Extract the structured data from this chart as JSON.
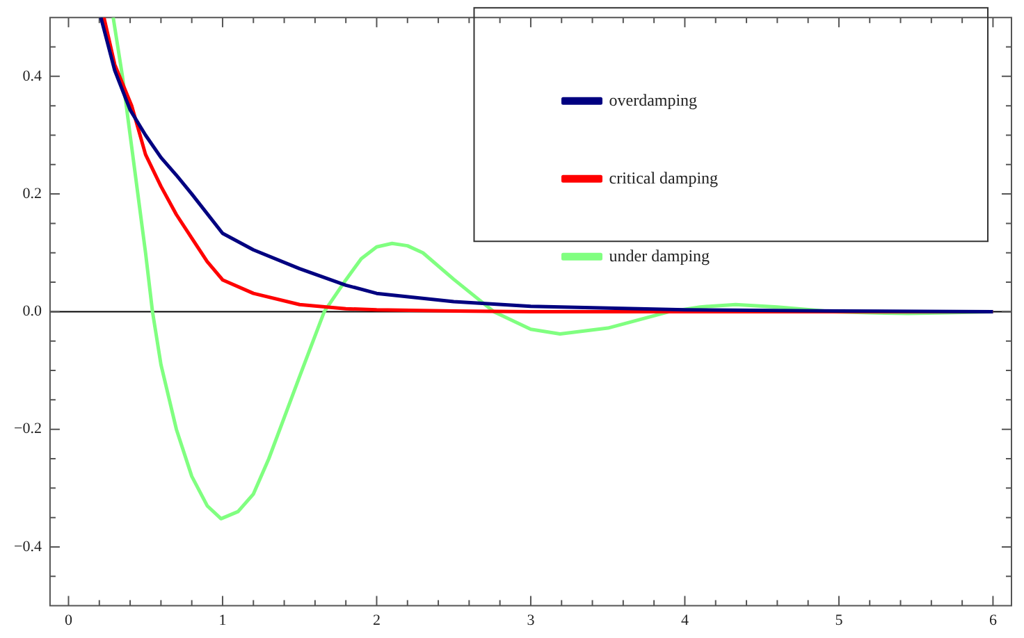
{
  "chart_data": {
    "type": "line",
    "xlim": [
      -0.12,
      6.12
    ],
    "ylim": [
      -0.5,
      0.5
    ],
    "xticks": [
      0,
      {
        "value": 0.2,
        "label": null
      },
      {
        "value": 0.4,
        "label": null
      },
      {
        "value": 0.6,
        "label": null
      },
      {
        "value": 0.8,
        "label": null
      },
      1,
      {
        "value": 1.2,
        "label": null
      },
      {
        "value": 1.4,
        "label": null
      },
      {
        "value": 1.6,
        "label": null
      },
      {
        "value": 1.8,
        "label": null
      },
      2,
      {
        "value": 2.2,
        "label": null
      },
      {
        "value": 2.4,
        "label": null
      },
      {
        "value": 2.6,
        "label": null
      },
      {
        "value": 2.8,
        "label": null
      },
      3,
      {
        "value": 3.2,
        "label": null
      },
      {
        "value": 3.4,
        "label": null
      },
      {
        "value": 3.6,
        "label": null
      },
      {
        "value": 3.8,
        "label": null
      },
      4,
      {
        "value": 4.2,
        "label": null
      },
      {
        "value": 4.4,
        "label": null
      },
      {
        "value": 4.6,
        "label": null
      },
      {
        "value": 4.8,
        "label": null
      },
      5,
      {
        "value": 5.2,
        "label": null
      },
      {
        "value": 5.4,
        "label": null
      },
      {
        "value": 5.6,
        "label": null
      },
      {
        "value": 5.8,
        "label": null
      },
      6
    ],
    "yticks": [
      {
        "value": -0.45,
        "label": null
      },
      {
        "value": -0.4,
        "label": "−0.4"
      },
      {
        "value": -0.35,
        "label": null
      },
      {
        "value": -0.3,
        "label": null
      },
      {
        "value": -0.25,
        "label": null
      },
      {
        "value": -0.2,
        "label": "−0.2"
      },
      {
        "value": -0.15,
        "label": null
      },
      {
        "value": -0.1,
        "label": null
      },
      {
        "value": -0.05,
        "label": null
      },
      {
        "value": 0,
        "label": "0.0"
      },
      {
        "value": 0.05,
        "label": null
      },
      {
        "value": 0.1,
        "label": null
      },
      {
        "value": 0.15,
        "label": null
      },
      {
        "value": 0.2,
        "label": "0.2"
      },
      {
        "value": 0.25,
        "label": null
      },
      {
        "value": 0.3,
        "label": null
      },
      {
        "value": 0.35,
        "label": null
      },
      {
        "value": 0.4,
        "label": "0.4"
      },
      {
        "value": 0.45,
        "label": null
      }
    ],
    "grid": false,
    "legend": "top right",
    "marker": "none",
    "line_style": "solid",
    "ref_lines": [
      {
        "axis": "y",
        "value": 0,
        "color": "#000000"
      }
    ],
    "series": [
      {
        "name": "overdamping",
        "color": "#000080",
        "x": [
          0.21,
          0.3,
          0.4,
          0.5,
          0.6,
          0.7,
          0.8,
          1.0,
          1.2,
          1.5,
          1.8,
          2.0,
          2.5,
          3.0,
          3.5,
          4.0,
          5.0,
          6.0
        ],
        "values": [
          0.5,
          0.41,
          0.343,
          0.3,
          0.262,
          0.232,
          0.2,
          0.133,
          0.105,
          0.073,
          0.045,
          0.031,
          0.017,
          0.009,
          0.006,
          0.003,
          0.001,
          0
        ]
      },
      {
        "name": "critical damping",
        "color": "#ff0000",
        "x": [
          0.23,
          0.3,
          0.41,
          0.5,
          0.6,
          0.7,
          0.8,
          0.9,
          1.0,
          1.2,
          1.5,
          1.8,
          2.0,
          2.5,
          3.0,
          4.0,
          5.0,
          6.0
        ],
        "values": [
          0.5,
          0.42,
          0.35,
          0.267,
          0.213,
          0.165,
          0.125,
          0.085,
          0.054,
          0.031,
          0.012,
          0.005,
          0.003,
          0.001,
          0,
          0,
          0,
          0
        ]
      },
      {
        "name": "under damping",
        "color": "#80ff80",
        "x": [
          0.29,
          0.35,
          0.4,
          0.45,
          0.5,
          0.545,
          0.6,
          0.7,
          0.8,
          0.9,
          0.99,
          1.1,
          1.2,
          1.3,
          1.4,
          1.5,
          1.66,
          1.8,
          1.9,
          2.0,
          2.1,
          2.2,
          2.3,
          2.5,
          2.76,
          3.0,
          3.19,
          3.5,
          3.9,
          4.1,
          4.33,
          4.6,
          4.96,
          5.2,
          5.45,
          5.7,
          6.0
        ],
        "values": [
          0.5,
          0.4,
          0.3,
          0.2,
          0.1,
          0,
          -0.09,
          -0.2,
          -0.28,
          -0.33,
          -0.352,
          -0.34,
          -0.31,
          -0.25,
          -0.18,
          -0.11,
          0,
          0.054,
          0.09,
          0.11,
          0.116,
          0.112,
          0.1,
          0.055,
          0,
          -0.03,
          -0.038,
          -0.028,
          0,
          0.008,
          0.012,
          0.008,
          0,
          -0.002,
          -0.003,
          -0.002,
          0
        ]
      }
    ]
  }
}
